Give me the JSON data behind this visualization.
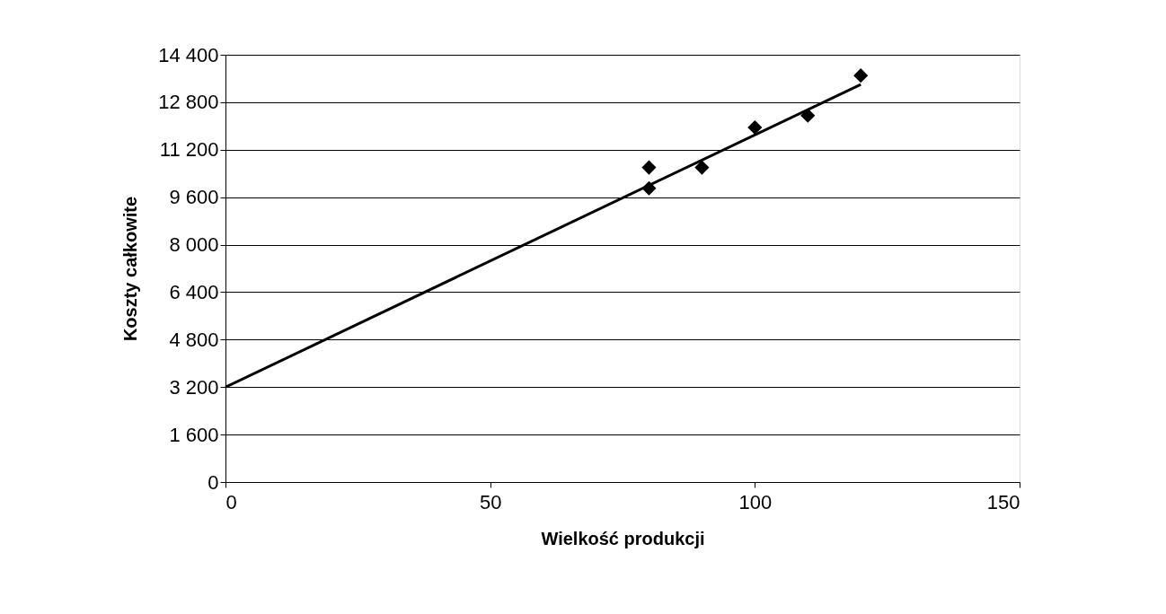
{
  "chart_data": {
    "type": "scatter",
    "xlabel": "Wielkość produkcji",
    "ylabel": "Koszty całkowite",
    "series": [
      {
        "color": "#000000",
        "marker": "diamond",
        "x": [
          80,
          80,
          90,
          100,
          110,
          120
        ],
        "values": [
          10600,
          9900,
          10600,
          11950,
          12350,
          13700
        ]
      },
      {
        "type": "line",
        "color": "#000000",
        "marker": "none",
        "line_style": "solid",
        "x": [
          0,
          120
        ],
        "values": [
          3200,
          13400
        ]
      }
    ],
    "xlim": [
      0,
      150
    ],
    "xticks": [
      0,
      50,
      100,
      150
    ],
    "ylim": [
      0,
      14400
    ],
    "yticks": [
      {
        "value": 0,
        "label": "0"
      },
      {
        "value": 1600,
        "label": "1 600"
      },
      {
        "value": 3200,
        "label": "3 200"
      },
      {
        "value": 4800,
        "label": "4 800"
      },
      {
        "value": 6400,
        "label": "6 400"
      },
      {
        "value": 8000,
        "label": "8 000"
      },
      {
        "value": 9600,
        "label": "9 600"
      },
      {
        "value": 11200,
        "label": "11 200"
      },
      {
        "value": 12800,
        "label": "12 800"
      },
      {
        "value": 14400,
        "label": "14 400"
      }
    ],
    "grid": "y"
  }
}
